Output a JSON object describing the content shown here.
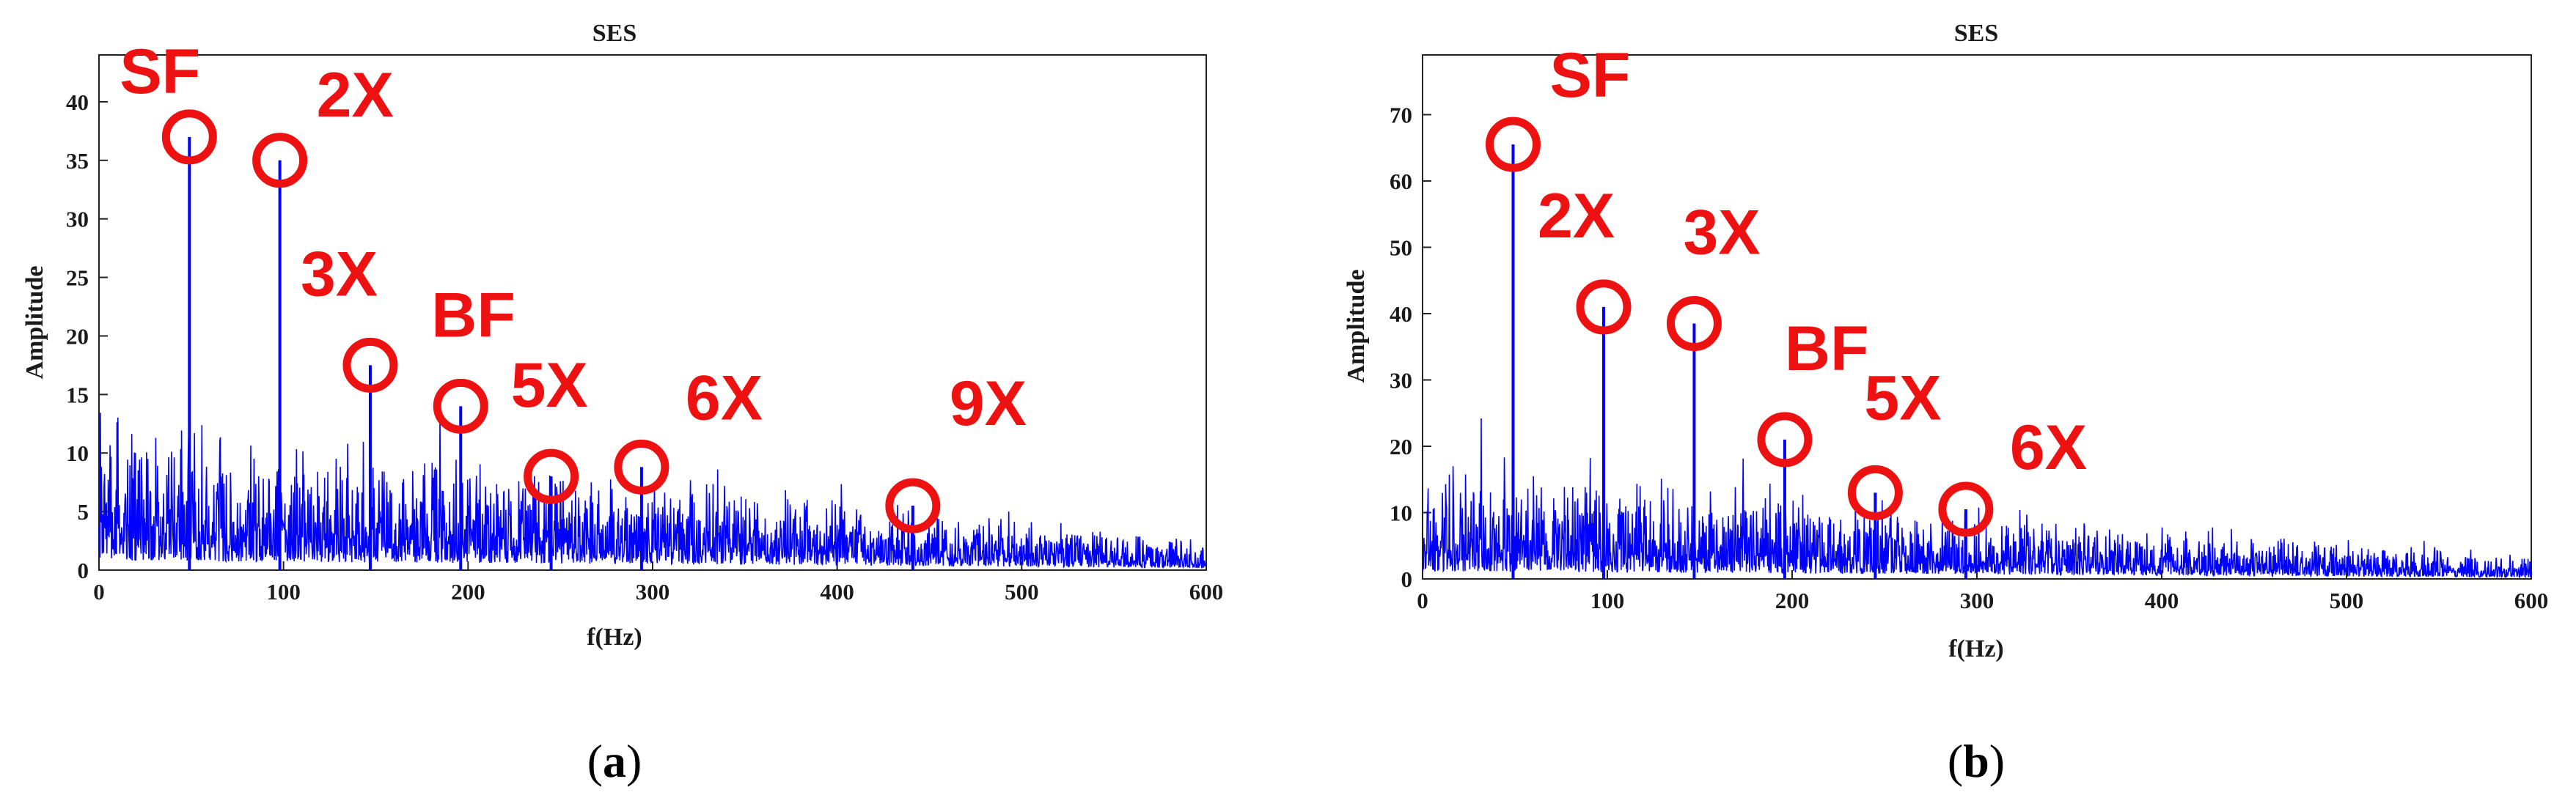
{
  "chart_data": [
    {
      "id": "a",
      "type": "line",
      "title": "SES",
      "xlabel": "f(Hz)",
      "ylabel": "Amplitude",
      "xlim": [
        0,
        600
      ],
      "ylim": [
        0,
        44
      ],
      "xticks": [
        0,
        100,
        200,
        300,
        400,
        500,
        600
      ],
      "yticks": [
        0,
        5,
        10,
        15,
        20,
        25,
        30,
        35,
        40
      ],
      "series_color": "#0000ff",
      "annotation_color": "#ee1111",
      "noise": {
        "base_start": 5.5,
        "base_end": 1.2
      },
      "peaks": [
        {
          "x": 49,
          "y": 37
        },
        {
          "x": 98,
          "y": 35
        },
        {
          "x": 147,
          "y": 17.5
        },
        {
          "x": 196,
          "y": 14
        },
        {
          "x": 245,
          "y": 8
        },
        {
          "x": 294,
          "y": 8.8
        },
        {
          "x": 441,
          "y": 5.5
        }
      ],
      "annotations": [
        {
          "label": "SF",
          "x": 49,
          "y": 37
        },
        {
          "label": "2X",
          "x": 98,
          "y": 35
        },
        {
          "label": "3X",
          "x": 147,
          "y": 17.5
        },
        {
          "label": "BF",
          "x": 196,
          "y": 14
        },
        {
          "label": "5X",
          "x": 245,
          "y": 8
        },
        {
          "label": "6X",
          "x": 294,
          "y": 8.8
        },
        {
          "label": "9X",
          "x": 441,
          "y": 5.5
        }
      ],
      "caption": "a"
    },
    {
      "id": "b",
      "type": "line",
      "title": "SES",
      "xlabel": "f(Hz)",
      "ylabel": "Amplitude",
      "xlim": [
        0,
        600
      ],
      "ylim": [
        0,
        79
      ],
      "xticks": [
        0,
        100,
        200,
        300,
        400,
        500,
        600
      ],
      "yticks": [
        0,
        10,
        20,
        30,
        40,
        50,
        60,
        70
      ],
      "series_color": "#0000ff",
      "annotation_color": "#ee1111",
      "noise": {
        "base_start": 7.5,
        "base_end": 1.5
      },
      "peaks": [
        {
          "x": 49,
          "y": 65.5
        },
        {
          "x": 98,
          "y": 41
        },
        {
          "x": 147,
          "y": 38.5
        },
        {
          "x": 196,
          "y": 21
        },
        {
          "x": 245,
          "y": 13
        },
        {
          "x": 294,
          "y": 10.5
        }
      ],
      "annotations": [
        {
          "label": "SF",
          "x": 49,
          "y": 65.5
        },
        {
          "label": "2X",
          "x": 98,
          "y": 41
        },
        {
          "label": "3X",
          "x": 147,
          "y": 38.5
        },
        {
          "label": "BF",
          "x": 196,
          "y": 21
        },
        {
          "label": "5X",
          "x": 245,
          "y": 13
        },
        {
          "label": "6X",
          "x": 294,
          "y": 10.5
        }
      ],
      "caption": "b"
    }
  ]
}
